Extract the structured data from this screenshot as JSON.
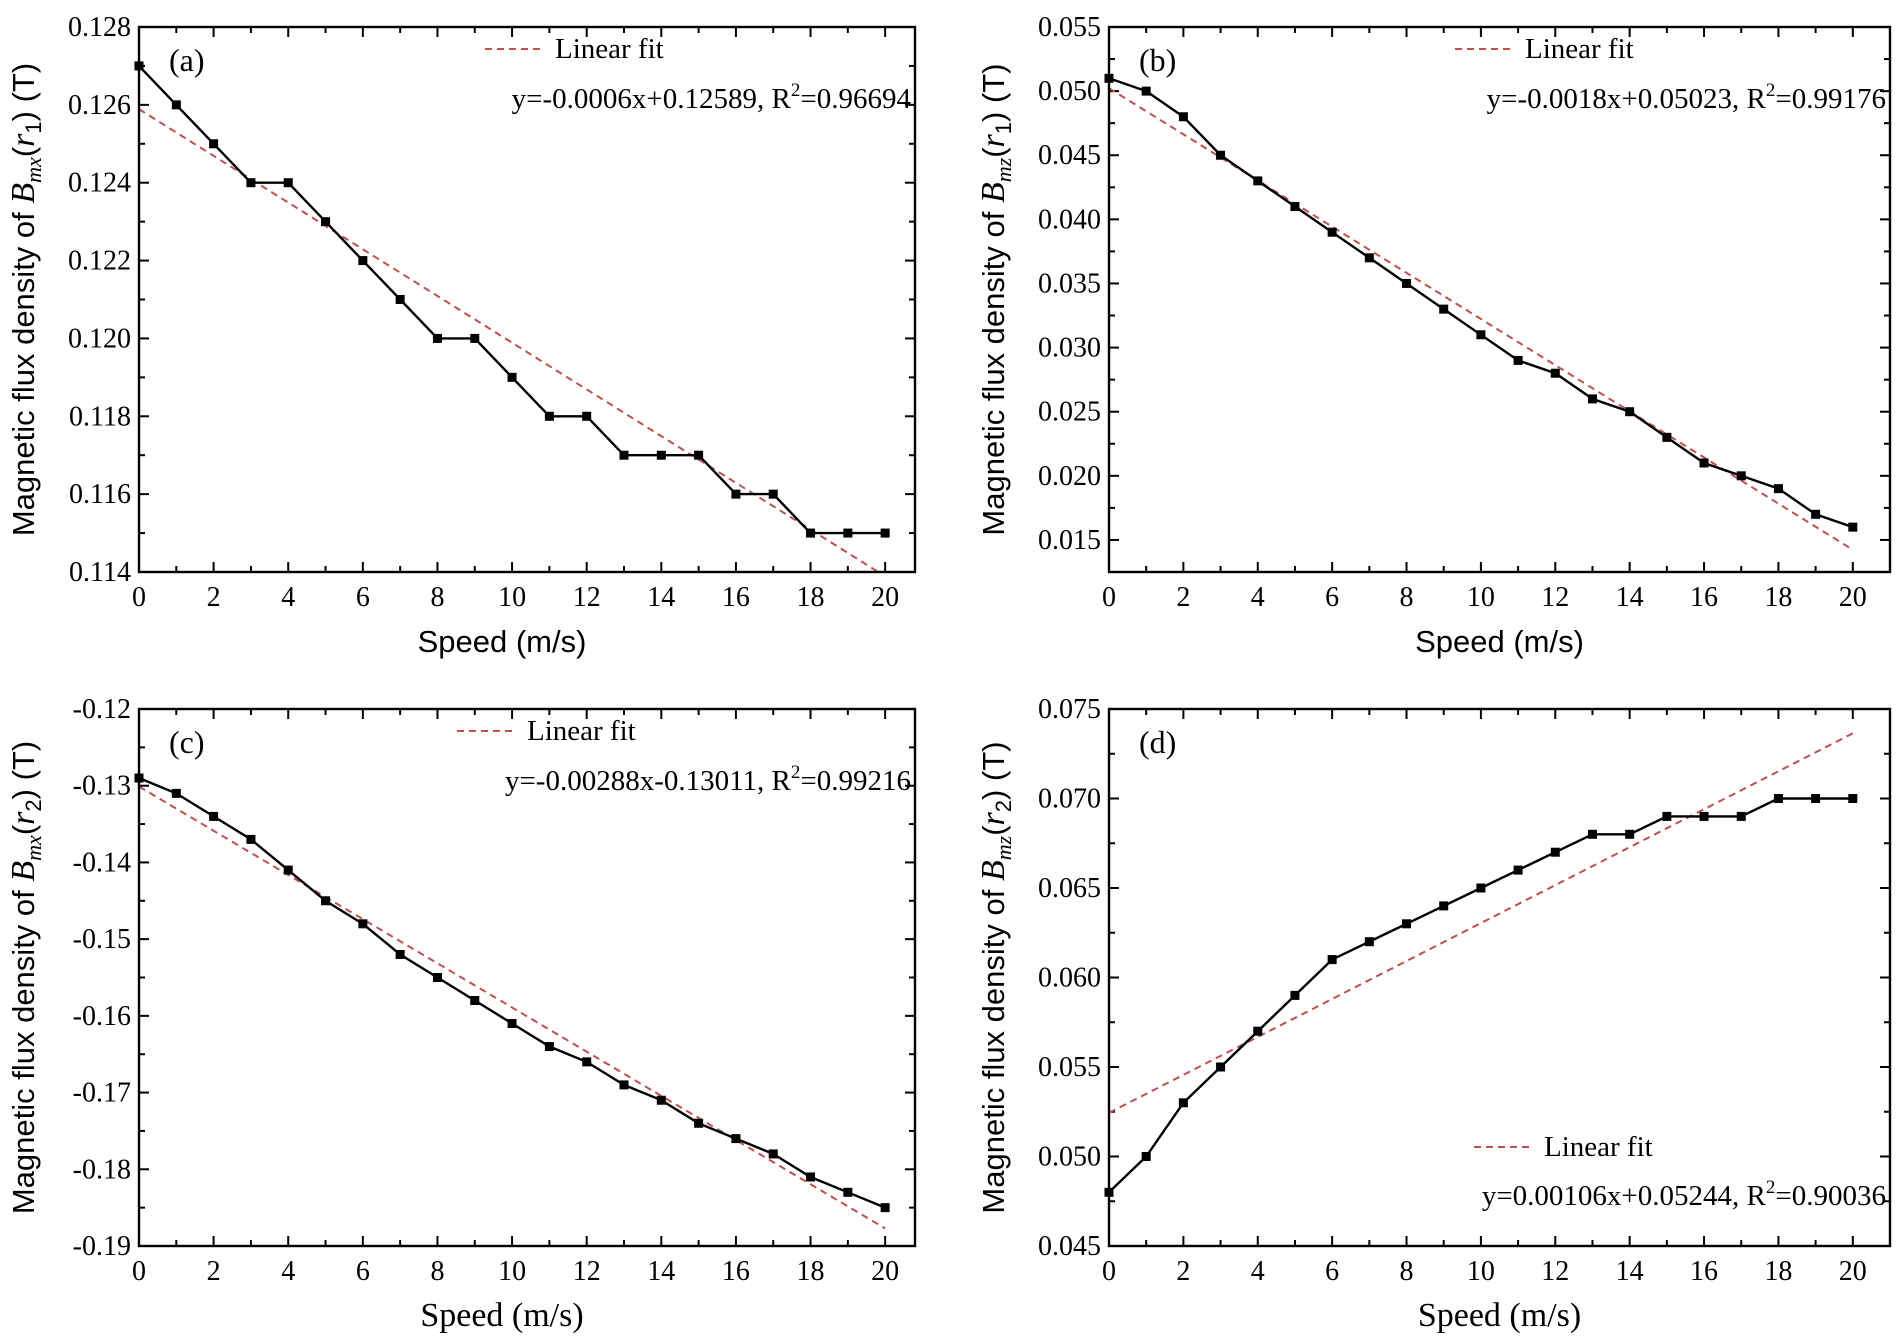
{
  "chart_data": [
    {
      "type": "line",
      "panel_label": "(a)",
      "xlabel": "Speed (m/s)",
      "ylabel": {
        "prefix": "Magnetic flux density of ",
        "symbol": "B",
        "sub": "mx",
        "arg": "r",
        "arg_sub": "1",
        "unit": " (T)"
      },
      "xlim": [
        0,
        20.8
      ],
      "ylim": [
        0.114,
        0.128
      ],
      "xticks": [
        "0",
        "2",
        "4",
        "6",
        "8",
        "10",
        "12",
        "14",
        "16",
        "18",
        "20"
      ],
      "yticks": [
        {
          "v": 0.114,
          "label": "0.114"
        },
        {
          "v": 0.116,
          "label": "0.116"
        },
        {
          "v": 0.118,
          "label": "0.118"
        },
        {
          "v": 0.12,
          "label": "0.120"
        },
        {
          "v": 0.122,
          "label": "0.122"
        },
        {
          "v": 0.124,
          "label": "0.124"
        },
        {
          "v": 0.126,
          "label": "0.126"
        },
        {
          "v": 0.128,
          "label": "0.128"
        }
      ],
      "x": [
        0,
        1,
        2,
        3,
        4,
        5,
        6,
        7,
        8,
        9,
        10,
        11,
        12,
        13,
        14,
        15,
        16,
        17,
        18,
        19,
        20
      ],
      "y": [
        0.127,
        0.126,
        0.125,
        0.124,
        0.124,
        0.123,
        0.122,
        0.121,
        0.12,
        0.12,
        0.119,
        0.118,
        0.118,
        0.117,
        0.117,
        0.117,
        0.116,
        0.116,
        0.115,
        0.115,
        0.115
      ],
      "fit": {
        "slope": -0.0006,
        "intercept": 0.12589
      },
      "legend": {
        "label": "Linear fit",
        "eq_pre": "y=-0.0006x+0.12589, R",
        "eq_sup": "2",
        "eq_post": "=0.96694",
        "placement": "top-right"
      },
      "grid": false
    },
    {
      "type": "line",
      "panel_label": "(b)",
      "xlabel": "Speed (m/s)",
      "ylabel": {
        "prefix": "Magnetic flux density of ",
        "symbol": "B",
        "sub": "mz",
        "arg": "r",
        "arg_sub": "1",
        "unit": " (T)"
      },
      "xlim": [
        0,
        21
      ],
      "ylim": [
        0.0125,
        0.055
      ],
      "xticks": [
        "0",
        "2",
        "4",
        "6",
        "8",
        "10",
        "12",
        "14",
        "16",
        "18",
        "20"
      ],
      "yticks": [
        {
          "v": 0.015,
          "label": "0.015"
        },
        {
          "v": 0.02,
          "label": "0.020"
        },
        {
          "v": 0.025,
          "label": "0.025"
        },
        {
          "v": 0.03,
          "label": "0.030"
        },
        {
          "v": 0.035,
          "label": "0.035"
        },
        {
          "v": 0.04,
          "label": "0.040"
        },
        {
          "v": 0.045,
          "label": "0.045"
        },
        {
          "v": 0.05,
          "label": "0.050"
        },
        {
          "v": 0.055,
          "label": "0.055"
        }
      ],
      "x": [
        0,
        1,
        2,
        3,
        4,
        5,
        6,
        7,
        8,
        9,
        10,
        11,
        12,
        13,
        14,
        15,
        16,
        17,
        18,
        19,
        20
      ],
      "y": [
        0.051,
        0.05,
        0.048,
        0.045,
        0.043,
        0.041,
        0.039,
        0.037,
        0.035,
        0.033,
        0.031,
        0.029,
        0.028,
        0.026,
        0.025,
        0.023,
        0.021,
        0.02,
        0.019,
        0.017,
        0.016
      ],
      "fit": {
        "slope": -0.0018,
        "intercept": 0.05023
      },
      "legend": {
        "label": "Linear fit",
        "eq_pre": "y=-0.0018x+0.05023, R",
        "eq_sup": "2",
        "eq_post": "=0.99176",
        "placement": "top-right"
      },
      "grid": false
    },
    {
      "type": "line",
      "panel_label": "(c)",
      "xlabel": "Speed (m/s)",
      "ylabel": {
        "prefix": "Magnetic flux density of ",
        "symbol": "B",
        "sub": "mx",
        "arg": "r",
        "arg_sub": "2",
        "unit": " (T)"
      },
      "xlim": [
        0,
        20.8
      ],
      "ylim": [
        -0.19,
        -0.12
      ],
      "xticks": [
        "0",
        "2",
        "4",
        "6",
        "8",
        "10",
        "12",
        "14",
        "16",
        "18",
        "20"
      ],
      "yticks": [
        {
          "v": -0.19,
          "label": "-0.19"
        },
        {
          "v": -0.18,
          "label": "-0.18"
        },
        {
          "v": -0.17,
          "label": "-0.17"
        },
        {
          "v": -0.16,
          "label": "-0.16"
        },
        {
          "v": -0.15,
          "label": "-0.15"
        },
        {
          "v": -0.14,
          "label": "-0.14"
        },
        {
          "v": -0.13,
          "label": "-0.13"
        },
        {
          "v": -0.12,
          "label": "-0.12"
        }
      ],
      "x": [
        0,
        1,
        2,
        3,
        4,
        5,
        6,
        7,
        8,
        9,
        10,
        11,
        12,
        13,
        14,
        15,
        16,
        17,
        18,
        19,
        20
      ],
      "y": [
        -0.129,
        -0.131,
        -0.134,
        -0.137,
        -0.141,
        -0.145,
        -0.148,
        -0.152,
        -0.155,
        -0.158,
        -0.161,
        -0.164,
        -0.166,
        -0.169,
        -0.171,
        -0.174,
        -0.176,
        -0.178,
        -0.181,
        -0.183,
        -0.185
      ],
      "fit": {
        "slope": -0.00288,
        "intercept": -0.13011
      },
      "legend": {
        "label": "Linear fit",
        "eq_pre": "y=-0.00288x-0.13011, R",
        "eq_sup": "2",
        "eq_post": "=0.99216",
        "placement": "top-right"
      },
      "grid": false
    },
    {
      "type": "line",
      "panel_label": "(d)",
      "xlabel": "Speed (m/s)",
      "ylabel": {
        "prefix": "Magnetic flux density of ",
        "symbol": "B",
        "sub": "mz",
        "arg": "r",
        "arg_sub": "2",
        "unit": " (T)"
      },
      "xlim": [
        0,
        21
      ],
      "ylim": [
        0.045,
        0.075
      ],
      "xticks": [
        "0",
        "2",
        "4",
        "6",
        "8",
        "10",
        "12",
        "14",
        "16",
        "18",
        "20"
      ],
      "yticks": [
        {
          "v": 0.045,
          "label": "0.045"
        },
        {
          "v": 0.05,
          "label": "0.050"
        },
        {
          "v": 0.055,
          "label": "0.055"
        },
        {
          "v": 0.06,
          "label": "0.060"
        },
        {
          "v": 0.065,
          "label": "0.065"
        },
        {
          "v": 0.07,
          "label": "0.070"
        },
        {
          "v": 0.075,
          "label": "0.075"
        }
      ],
      "x": [
        0,
        1,
        2,
        3,
        4,
        5,
        6,
        7,
        8,
        9,
        10,
        11,
        12,
        13,
        14,
        15,
        16,
        17,
        18,
        19,
        20
      ],
      "y": [
        0.048,
        0.05,
        0.053,
        0.055,
        0.057,
        0.059,
        0.061,
        0.062,
        0.063,
        0.064,
        0.065,
        0.066,
        0.067,
        0.068,
        0.068,
        0.069,
        0.069,
        0.069,
        0.07,
        0.07,
        0.07
      ],
      "fit": {
        "slope": 0.00106,
        "intercept": 0.05244
      },
      "legend": {
        "label": "Linear fit",
        "eq_pre": "y=0.00106x+0.05244, R",
        "eq_sup": "2",
        "eq_post": "=0.90036",
        "placement": "bottom-right"
      },
      "grid": false
    }
  ],
  "colors": {
    "data": "#000000",
    "fit": "#c0504d",
    "axis": "#000000"
  }
}
